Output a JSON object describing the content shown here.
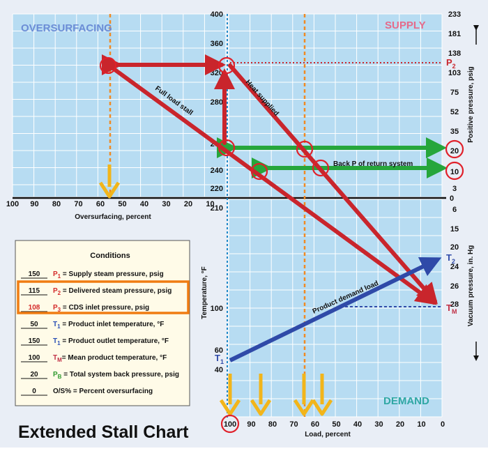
{
  "title": "Extended Stall Chart",
  "regions": {
    "oversurfacing": "OVERSURFACING",
    "supply": "SUPPLY",
    "demand": "DEMAND"
  },
  "axes": {
    "oversurfacing_x_label": "Oversurfacing, percent",
    "oversurfacing_ticks": [
      "100",
      "90",
      "80",
      "70",
      "60",
      "50",
      "40",
      "30",
      "20",
      "10"
    ],
    "load_x_label": "Load, percent",
    "load_ticks": [
      "100",
      "90",
      "80",
      "70",
      "60",
      "50",
      "40",
      "30",
      "20",
      "10",
      "0"
    ],
    "temperature_label": "Temperature, °F",
    "temp_upper_ticks": [
      "400",
      "360",
      "320",
      "280",
      "260",
      "240",
      "220"
    ],
    "temp_lower_ticks": [
      "210",
      "100",
      "60",
      "40"
    ],
    "positive_pressure_label": "Positive pressure, psig",
    "positive_pressure_ticks": [
      "233",
      "181",
      "138",
      "103",
      "75",
      "52",
      "35",
      "20",
      "10",
      "3"
    ],
    "zero_label": "0",
    "vacuum_label": "Vacuum pressure, in. Hg",
    "vacuum_ticks": [
      "6",
      "15",
      "20",
      "24",
      "26",
      "28"
    ]
  },
  "markers": {
    "p2": "P",
    "p2_sub": "2",
    "t1": "T",
    "t1_sub": "1",
    "t2": "T",
    "t2_sub": "2",
    "tm": "T",
    "tm_sub": "M"
  },
  "annotations": {
    "full_load_stall": "Full load stall",
    "heat_supplied": "Heat supplied",
    "back_p": "Back P of return system",
    "product_demand_load": "Product demand load"
  },
  "conditions": {
    "heading": "Conditions",
    "rows": [
      {
        "value": "150",
        "sym": "P",
        "sub": "1",
        "desc": " = Supply steam pressure, psig",
        "value_color": "#111111",
        "sym_color": "#d42a2a"
      },
      {
        "value": "115",
        "sym": "P",
        "sub": "2",
        "desc": " = Delivered steam pressure, psig",
        "value_color": "#111111",
        "sym_color": "#d42a2a"
      },
      {
        "value": "108",
        "sym": "P",
        "sub": "3",
        "desc": " = CDS inlet pressure, psig",
        "value_color": "#d42a2a",
        "sym_color": "#d42a2a"
      },
      {
        "value": "50",
        "sym": "T",
        "sub": "1",
        "desc": " = Product inlet temperature, °F",
        "value_color": "#111111",
        "sym_color": "#2a4fb5"
      },
      {
        "value": "150",
        "sym": "T",
        "sub": "1",
        "desc": " = Product outlet temperature, °F",
        "value_color": "#111111",
        "sym_color": "#2a4fb5"
      },
      {
        "value": "100",
        "sym": "T",
        "sub": "M",
        "desc": "= Mean product temperature, °F",
        "value_color": "#111111",
        "sym_color": "#c02f45"
      },
      {
        "value": "20",
        "sym": "P",
        "sub": "B",
        "desc": " = Total system back pressure, psig",
        "value_color": "#111111",
        "sym_color": "#2f9a2f"
      },
      {
        "value": "0",
        "sym": "",
        "sub": "",
        "desc": "O/S% = Percent oversurfacing",
        "value_color": "#111111",
        "sym_color": "#111111"
      }
    ]
  },
  "colors": {
    "grid_bg": "#b7dcf2",
    "grid_line": "#ffffff",
    "red_arrow": "#c9252c",
    "green_arrow": "#26a63b",
    "blue_arrow": "#2f4aa8",
    "yellow_arrow": "#f2b51a",
    "orange_dash": "#f08a24",
    "highlight_box": "#f07c12"
  }
}
